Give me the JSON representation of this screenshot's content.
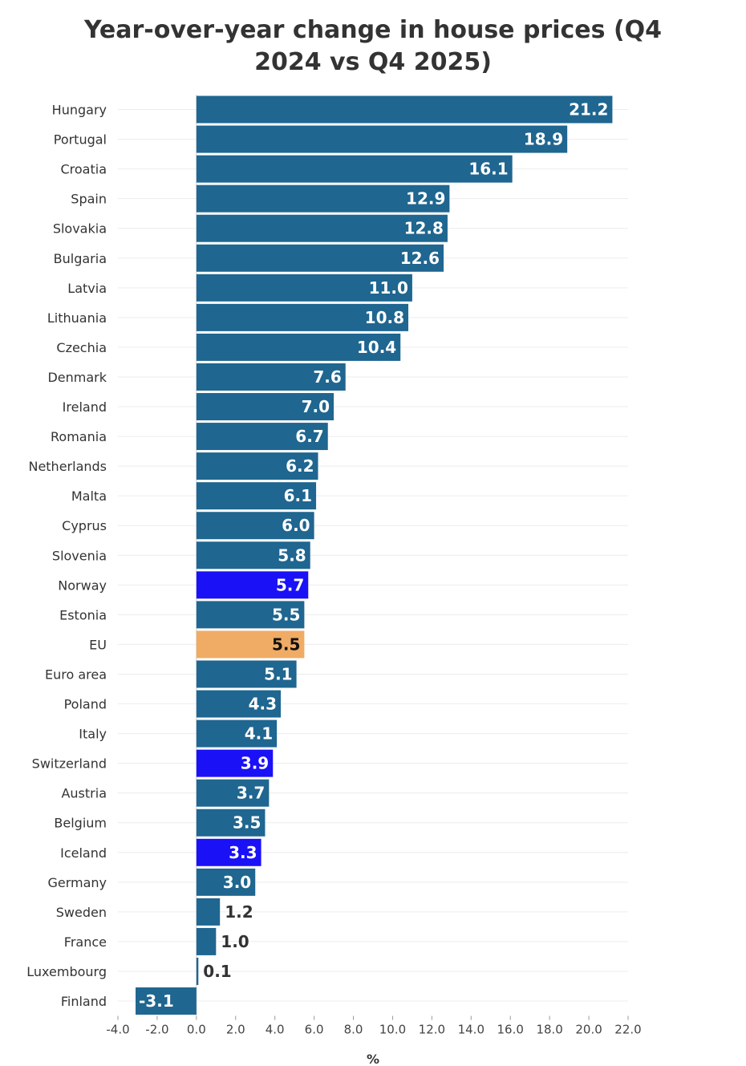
{
  "chart_data": {
    "type": "bar",
    "orientation": "horizontal",
    "title_line1": "Year-over-year change in house prices (Q4",
    "title_line2": "2024 vs Q4 2025)",
    "xlabel": "%",
    "ylabel": "",
    "xlim": [
      -4.0,
      22.0
    ],
    "xticks": [
      "-4.0",
      "-2.0",
      "0.0",
      "2.0",
      "4.0",
      "6.0",
      "8.0",
      "10.0",
      "12.0",
      "14.0",
      "16.0",
      "18.0",
      "20.0",
      "22.0"
    ],
    "grid": true,
    "colors": {
      "default": "#1f6690",
      "non_eu": "#1a11f7",
      "eu": "#f0ab64",
      "title": "#333333"
    },
    "categories": [
      "Hungary",
      "Portugal",
      "Croatia",
      "Spain",
      "Slovakia",
      "Bulgaria",
      "Latvia",
      "Lithuania",
      "Czechia",
      "Denmark",
      "Ireland",
      "Romania",
      "Netherlands",
      "Malta",
      "Cyprus",
      "Slovenia",
      "Norway",
      "Estonia",
      "EU",
      "Euro area",
      "Poland",
      "Italy",
      "Switzerland",
      "Austria",
      "Belgium",
      "Iceland",
      "Germany",
      "Sweden",
      "France",
      "Luxembourg",
      "Finland"
    ],
    "values": [
      21.2,
      18.9,
      16.1,
      12.9,
      12.8,
      12.6,
      11.0,
      10.8,
      10.4,
      7.6,
      7.0,
      6.7,
      6.2,
      6.1,
      6.0,
      5.8,
      5.7,
      5.5,
      5.5,
      5.1,
      4.3,
      4.1,
      3.9,
      3.7,
      3.5,
      3.3,
      3.0,
      1.2,
      1.0,
      0.1,
      -3.1
    ],
    "value_labels": [
      "21.2",
      "18.9",
      "16.1",
      "12.9",
      "12.8",
      "12.6",
      "11.0",
      "10.8",
      "10.4",
      "7.6",
      "7.0",
      "6.7",
      "6.2",
      "6.1",
      "6.0",
      "5.8",
      "5.7",
      "5.5",
      "5.5",
      "5.1",
      "4.3",
      "4.1",
      "3.9",
      "3.7",
      "3.5",
      "3.3",
      "3.0",
      "1.2",
      "1.0",
      "0.1",
      "-3.1"
    ],
    "bar_color_keys": [
      "default",
      "default",
      "default",
      "default",
      "default",
      "default",
      "default",
      "default",
      "default",
      "default",
      "default",
      "default",
      "default",
      "default",
      "default",
      "default",
      "non_eu",
      "default",
      "eu",
      "default",
      "default",
      "default",
      "non_eu",
      "default",
      "default",
      "non_eu",
      "default",
      "default",
      "default",
      "default",
      "default"
    ]
  }
}
